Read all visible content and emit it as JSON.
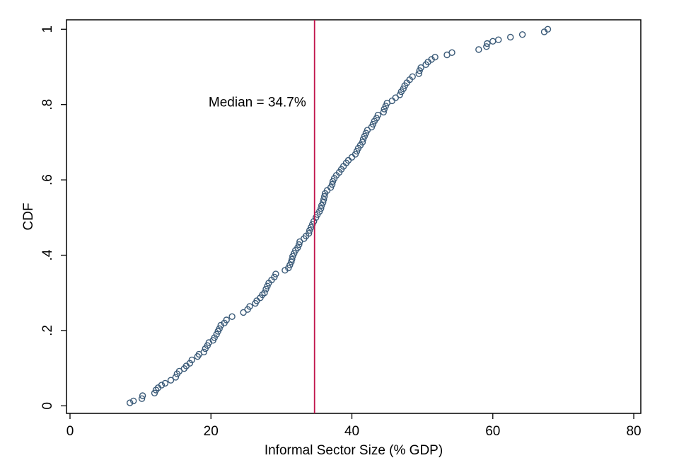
{
  "chart_data": {
    "type": "scatter",
    "title": "",
    "xlabel": "Informal Sector Size (% GDP)",
    "ylabel": "CDF",
    "xlim": [
      -0.5,
      81
    ],
    "ylim": [
      -0.02,
      1.025
    ],
    "xticks": [
      0,
      20,
      40,
      60,
      80
    ],
    "xtick_labels": [
      "0",
      "20",
      "40",
      "60",
      "80"
    ],
    "yticks": [
      0,
      0.2,
      0.4,
      0.6,
      0.8,
      1
    ],
    "ytick_labels": [
      "0",
      ".2",
      ".4",
      ".6",
      ".8",
      "1"
    ],
    "grid": false,
    "legend": "none",
    "marker_color": "#3a5a78",
    "median_line": {
      "x": 34.7,
      "color": "#c0144b"
    },
    "annotation": {
      "text": "Median = 34.7%",
      "x": 33.5,
      "y": 0.795
    },
    "points": [
      [
        8.5,
        0.008
      ],
      [
        9.0,
        0.013
      ],
      [
        10.2,
        0.019
      ],
      [
        10.3,
        0.027
      ],
      [
        12.0,
        0.034
      ],
      [
        12.2,
        0.042
      ],
      [
        12.5,
        0.048
      ],
      [
        13.0,
        0.055
      ],
      [
        13.5,
        0.06
      ],
      [
        14.3,
        0.068
      ],
      [
        15.0,
        0.076
      ],
      [
        15.2,
        0.085
      ],
      [
        15.5,
        0.092
      ],
      [
        16.2,
        0.099
      ],
      [
        16.5,
        0.106
      ],
      [
        17.0,
        0.113
      ],
      [
        17.3,
        0.122
      ],
      [
        18.1,
        0.131
      ],
      [
        18.3,
        0.137
      ],
      [
        19.0,
        0.143
      ],
      [
        19.2,
        0.152
      ],
      [
        19.5,
        0.16
      ],
      [
        19.7,
        0.168
      ],
      [
        20.3,
        0.174
      ],
      [
        20.5,
        0.181
      ],
      [
        20.8,
        0.19
      ],
      [
        21.0,
        0.198
      ],
      [
        21.2,
        0.205
      ],
      [
        21.4,
        0.214
      ],
      [
        21.9,
        0.22
      ],
      [
        22.2,
        0.228
      ],
      [
        23.0,
        0.237
      ],
      [
        24.6,
        0.248
      ],
      [
        25.2,
        0.256
      ],
      [
        25.5,
        0.264
      ],
      [
        26.3,
        0.272
      ],
      [
        26.5,
        0.279
      ],
      [
        27.0,
        0.287
      ],
      [
        27.3,
        0.295
      ],
      [
        27.6,
        0.3
      ],
      [
        27.8,
        0.31
      ],
      [
        28.0,
        0.318
      ],
      [
        28.2,
        0.326
      ],
      [
        28.6,
        0.334
      ],
      [
        29.0,
        0.342
      ],
      [
        29.2,
        0.35
      ],
      [
        30.5,
        0.36
      ],
      [
        31.0,
        0.366
      ],
      [
        31.2,
        0.374
      ],
      [
        31.4,
        0.382
      ],
      [
        31.5,
        0.389
      ],
      [
        31.6,
        0.397
      ],
      [
        31.8,
        0.405
      ],
      [
        32.0,
        0.413
      ],
      [
        32.3,
        0.42
      ],
      [
        32.5,
        0.428
      ],
      [
        32.6,
        0.436
      ],
      [
        33.2,
        0.444
      ],
      [
        33.5,
        0.451
      ],
      [
        33.9,
        0.458
      ],
      [
        34.0,
        0.466
      ],
      [
        34.2,
        0.474
      ],
      [
        34.4,
        0.482
      ],
      [
        34.6,
        0.49
      ],
      [
        34.9,
        0.5
      ],
      [
        35.1,
        0.508
      ],
      [
        35.4,
        0.516
      ],
      [
        35.6,
        0.524
      ],
      [
        35.7,
        0.532
      ],
      [
        35.9,
        0.54
      ],
      [
        36.0,
        0.548
      ],
      [
        36.1,
        0.556
      ],
      [
        36.2,
        0.564
      ],
      [
        36.5,
        0.572
      ],
      [
        37.0,
        0.58
      ],
      [
        37.2,
        0.588
      ],
      [
        37.3,
        0.596
      ],
      [
        37.5,
        0.604
      ],
      [
        37.8,
        0.612
      ],
      [
        38.2,
        0.62
      ],
      [
        38.5,
        0.628
      ],
      [
        38.8,
        0.636
      ],
      [
        39.2,
        0.645
      ],
      [
        39.5,
        0.652
      ],
      [
        40.0,
        0.66
      ],
      [
        40.5,
        0.668
      ],
      [
        40.7,
        0.676
      ],
      [
        40.9,
        0.684
      ],
      [
        41.2,
        0.692
      ],
      [
        41.5,
        0.7
      ],
      [
        41.6,
        0.708
      ],
      [
        41.8,
        0.716
      ],
      [
        42.0,
        0.724
      ],
      [
        42.2,
        0.732
      ],
      [
        42.8,
        0.74
      ],
      [
        43.0,
        0.748
      ],
      [
        43.2,
        0.756
      ],
      [
        43.5,
        0.764
      ],
      [
        43.7,
        0.772
      ],
      [
        44.5,
        0.78
      ],
      [
        44.6,
        0.788
      ],
      [
        44.8,
        0.796
      ],
      [
        45.0,
        0.804
      ],
      [
        45.7,
        0.81
      ],
      [
        46.2,
        0.818
      ],
      [
        46.8,
        0.826
      ],
      [
        47.0,
        0.834
      ],
      [
        47.3,
        0.842
      ],
      [
        47.5,
        0.85
      ],
      [
        47.8,
        0.858
      ],
      [
        48.2,
        0.866
      ],
      [
        48.6,
        0.874
      ],
      [
        49.5,
        0.882
      ],
      [
        49.6,
        0.89
      ],
      [
        49.8,
        0.898
      ],
      [
        50.5,
        0.906
      ],
      [
        50.8,
        0.913
      ],
      [
        51.3,
        0.92
      ],
      [
        51.8,
        0.926
      ],
      [
        53.5,
        0.932
      ],
      [
        54.2,
        0.938
      ],
      [
        58.0,
        0.946
      ],
      [
        59.1,
        0.954
      ],
      [
        59.2,
        0.962
      ],
      [
        60.0,
        0.968
      ],
      [
        60.8,
        0.972
      ],
      [
        62.5,
        0.979
      ],
      [
        64.2,
        0.986
      ],
      [
        67.3,
        0.993
      ],
      [
        67.8,
        1.0
      ]
    ]
  }
}
